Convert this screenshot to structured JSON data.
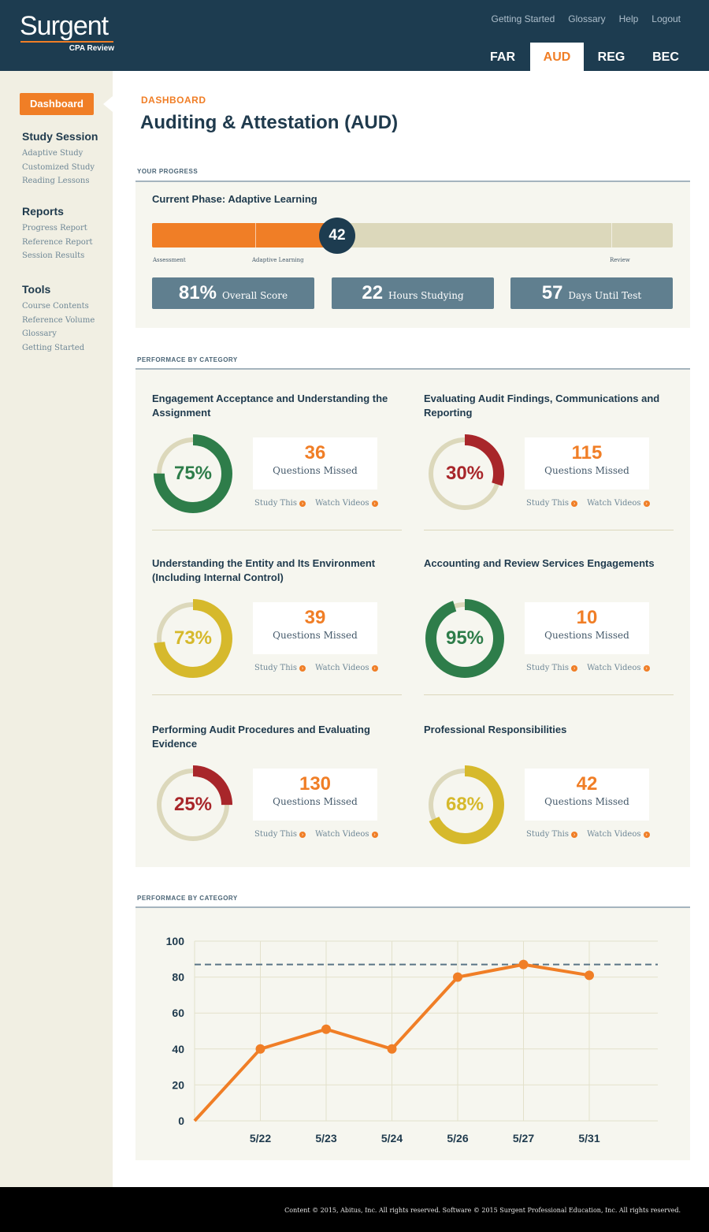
{
  "header": {
    "logo": {
      "wordmark": "Surgent",
      "subtitle": "CPA Review"
    },
    "links": [
      "Getting Started",
      "Glossary",
      "Help",
      "Logout"
    ],
    "tabs": [
      {
        "label": "FAR",
        "active": false
      },
      {
        "label": "AUD",
        "active": true
      },
      {
        "label": "REG",
        "active": false
      },
      {
        "label": "BEC",
        "active": false
      }
    ]
  },
  "sidebar": {
    "dashboard_button": "Dashboard",
    "groups": [
      {
        "title": "Study Session",
        "items": [
          "Adaptive Study",
          "Customized Study",
          "Reading Lessons"
        ]
      },
      {
        "title": "Reports",
        "items": [
          "Progress Report",
          "Reference Report",
          "Session Results"
        ]
      },
      {
        "title": "Tools",
        "items": [
          "Course Contents",
          "Reference Volume",
          "Glossary",
          "Getting Started"
        ]
      }
    ]
  },
  "page": {
    "breadcrumb": "DASHBOARD",
    "title": "Auditing & Attestation (AUD)"
  },
  "progress": {
    "section_label": "YOUR PROGRESS",
    "current_phase": "Current Phase: Adaptive Learning",
    "phase_value": "42",
    "phase_fraction": 0.356,
    "phase_labels": [
      "Assessment",
      "Adaptive Learning",
      "Review"
    ],
    "stats": [
      {
        "value": "81%",
        "label": "Overall Score"
      },
      {
        "value": "22",
        "label": "Hours Studying"
      },
      {
        "value": "57",
        "label": "Days Until Test"
      }
    ]
  },
  "categories": {
    "section_label": "PERFORMACE BY CATEGORY",
    "study_link": "Study This",
    "videos_link": "Watch Videos",
    "missed_label": "Questions Missed",
    "items": [
      {
        "title": "Engagement Acceptance and Understanding the Assignment",
        "percent": 75,
        "percent_label": "75%",
        "missed": "36",
        "color": "#2e7d4a"
      },
      {
        "title": "Evaluating Audit Findings, Communications and Reporting",
        "percent": 30,
        "percent_label": "30%",
        "missed": "115",
        "color": "#a8262a"
      },
      {
        "title": "Understanding the Entity and Its Environment (Including Internal Control)",
        "percent": 73,
        "percent_label": "73%",
        "missed": "39",
        "color": "#d6b92c"
      },
      {
        "title": "Accounting and Review Services Engagements",
        "percent": 95,
        "percent_label": "95%",
        "missed": "10",
        "color": "#2e7d4a"
      },
      {
        "title": "Performing Audit Procedures and Evaluating Evidence",
        "percent": 25,
        "percent_label": "25%",
        "missed": "130",
        "color": "#a8262a"
      },
      {
        "title": "Professional Responsibilities",
        "percent": 68,
        "percent_label": "68%",
        "missed": "42",
        "color": "#d6b92c"
      }
    ]
  },
  "chart_section": {
    "section_label": "PERFORMACE BY CATEGORY"
  },
  "chart_data": {
    "type": "line",
    "title": "",
    "xlabel": "",
    "ylabel": "",
    "categories": [
      "",
      "5/22",
      "5/23",
      "5/24",
      "5/26",
      "5/27",
      "5/31"
    ],
    "values": [
      0,
      40,
      51,
      40,
      80,
      87,
      81
    ],
    "reference_line": 87,
    "ylim": [
      0,
      100
    ],
    "yticks": [
      0,
      20,
      40,
      60,
      80,
      100
    ],
    "grid": true,
    "color": "#f07e26",
    "reference_color": "#5a7586"
  },
  "footer": {
    "text": "Content © 2015, Abitus, Inc. All rights reserved. Software © 2015 Surgent Professional Education, Inc. All rights reserved."
  }
}
